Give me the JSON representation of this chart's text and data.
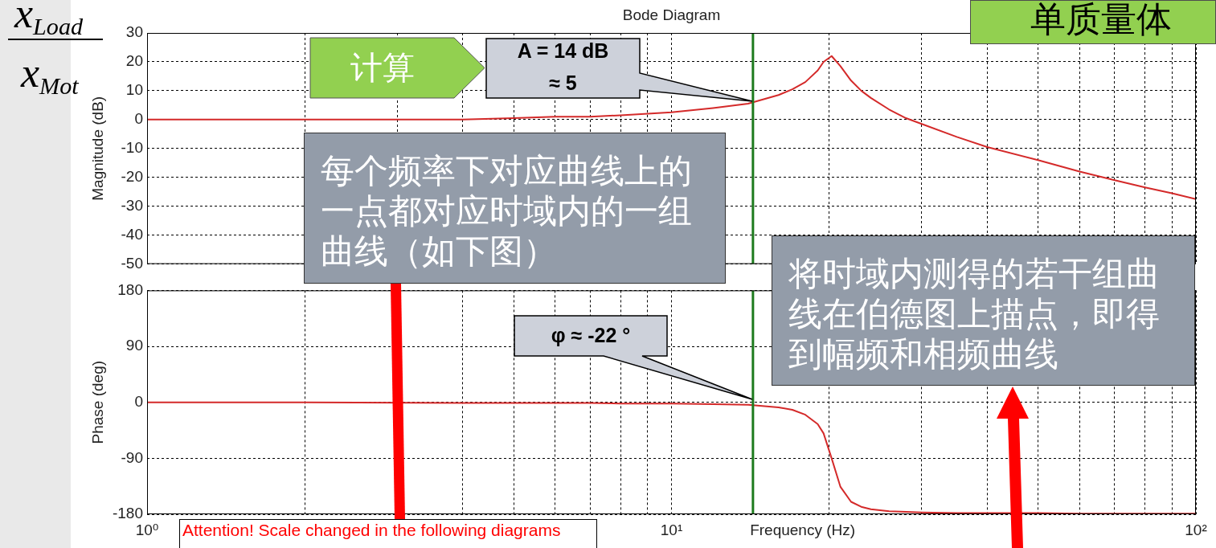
{
  "chart_data": [
    {
      "type": "line",
      "title": "Bode Diagram",
      "ylabel": "Magnitude (dB)",
      "x": [
        1,
        2,
        3,
        4,
        5,
        6,
        7,
        8,
        10,
        12,
        14,
        16,
        17,
        18,
        19,
        19.5,
        20.2,
        21,
        22,
        23,
        24,
        26,
        28,
        30,
        35,
        40,
        50,
        60,
        70,
        80,
        90,
        100
      ],
      "series": [
        {
          "color": "#d42a2a",
          "values": [
            0,
            0,
            0,
            0,
            0.5,
            1,
            1,
            1.5,
            2.5,
            4,
            5.5,
            8.5,
            10.5,
            13,
            17,
            20,
            22,
            18.5,
            13.5,
            10,
            7.5,
            3.5,
            0.5,
            -1.5,
            -6,
            -9.5,
            -14,
            -18,
            -21,
            -23.5,
            -25.5,
            -27.5
          ]
        }
      ],
      "log": "x",
      "xlim": [
        1,
        100
      ],
      "xticks": [
        {
          "value": 1,
          "label": null
        },
        {
          "value": 2,
          "label": null
        },
        {
          "value": 3,
          "label": null
        },
        {
          "value": 4,
          "label": null
        },
        {
          "value": 5,
          "label": null
        },
        {
          "value": 6,
          "label": null
        },
        {
          "value": 7,
          "label": null
        },
        {
          "value": 8,
          "label": null
        },
        {
          "value": 9,
          "label": null
        },
        {
          "value": 10,
          "label": null
        },
        {
          "value": 20,
          "label": null
        },
        {
          "value": 30,
          "label": null
        },
        {
          "value": 40,
          "label": null
        },
        {
          "value": 50,
          "label": null
        },
        {
          "value": 60,
          "label": null
        },
        {
          "value": 70,
          "label": null
        },
        {
          "value": 80,
          "label": null
        },
        {
          "value": 90,
          "label": null
        },
        {
          "value": 100,
          "label": null
        }
      ],
      "ylim": [
        -50,
        30
      ],
      "yticks": [
        -50,
        -40,
        -30,
        -20,
        -10,
        0,
        10,
        20,
        30
      ],
      "grid": true,
      "marker": "none",
      "tick_labels": "y",
      "ref_lines": [
        {
          "axis": "x",
          "value": 14.3,
          "color": "#1e7b1e"
        }
      ],
      "annotations": [
        "x$_{Load}$",
        "x$_{Mot}$",
        "单质量体",
        "计算",
        "A = 14 dB\n≈ 5",
        "每个频率下对应曲线上的一点都对应时域内的一组曲线（如下图）"
      ]
    },
    {
      "type": "line",
      "xlabel": "Frequency (Hz)",
      "ylabel": "Phase (deg)",
      "x": [
        1,
        2,
        4,
        5,
        6,
        7,
        8,
        10,
        12,
        14,
        16,
        17,
        18,
        19,
        19.5,
        20.2,
        21,
        22,
        23,
        24,
        26,
        28,
        30,
        35,
        40,
        50,
        60,
        70,
        80,
        90,
        100
      ],
      "series": [
        {
          "color": "#d42a2a",
          "values": [
            0,
            0,
            -1,
            -1,
            -1,
            -1,
            -2,
            -2,
            -3,
            -4,
            -8,
            -12,
            -20,
            -35,
            -50,
            -90,
            -136,
            -160,
            -168,
            -172,
            -175,
            -176,
            -177,
            -178,
            -178,
            -178,
            -179,
            -179,
            -179,
            -179,
            -179
          ]
        }
      ],
      "log": "x",
      "xlim": [
        1,
        100
      ],
      "xticks": [
        {
          "value": 1,
          "label": "10⁰"
        },
        {
          "value": 2,
          "label": null
        },
        {
          "value": 4,
          "label": null
        },
        {
          "value": 5,
          "label": null
        },
        {
          "value": 6,
          "label": null
        },
        {
          "value": 7,
          "label": null
        },
        {
          "value": 8,
          "label": null
        },
        {
          "value": 9,
          "label": null
        },
        {
          "value": 10,
          "label": "10¹"
        },
        {
          "value": 20,
          "label": null
        },
        {
          "value": 30,
          "label": null
        },
        {
          "value": 40,
          "label": null
        },
        {
          "value": 50,
          "label": null
        },
        {
          "value": 60,
          "label": null
        },
        {
          "value": 70,
          "label": null
        },
        {
          "value": 80,
          "label": null
        },
        {
          "value": 90,
          "label": null
        },
        {
          "value": 100,
          "label": "10²"
        }
      ],
      "ylim": [
        -180,
        180
      ],
      "yticks": [
        -180,
        -90,
        0,
        90,
        180
      ],
      "grid": true,
      "marker": "none",
      "ref_lines": [
        {
          "axis": "x",
          "value": 14.3,
          "color": "#1e7b1e"
        }
      ],
      "annotations": [
        "φ ≈ -22 °",
        "将时域内测得的若干组曲线在伯德图上描点，即得到幅频和相频曲线",
        "Attention! Scale changed in the following diagrams"
      ]
    }
  ]
}
